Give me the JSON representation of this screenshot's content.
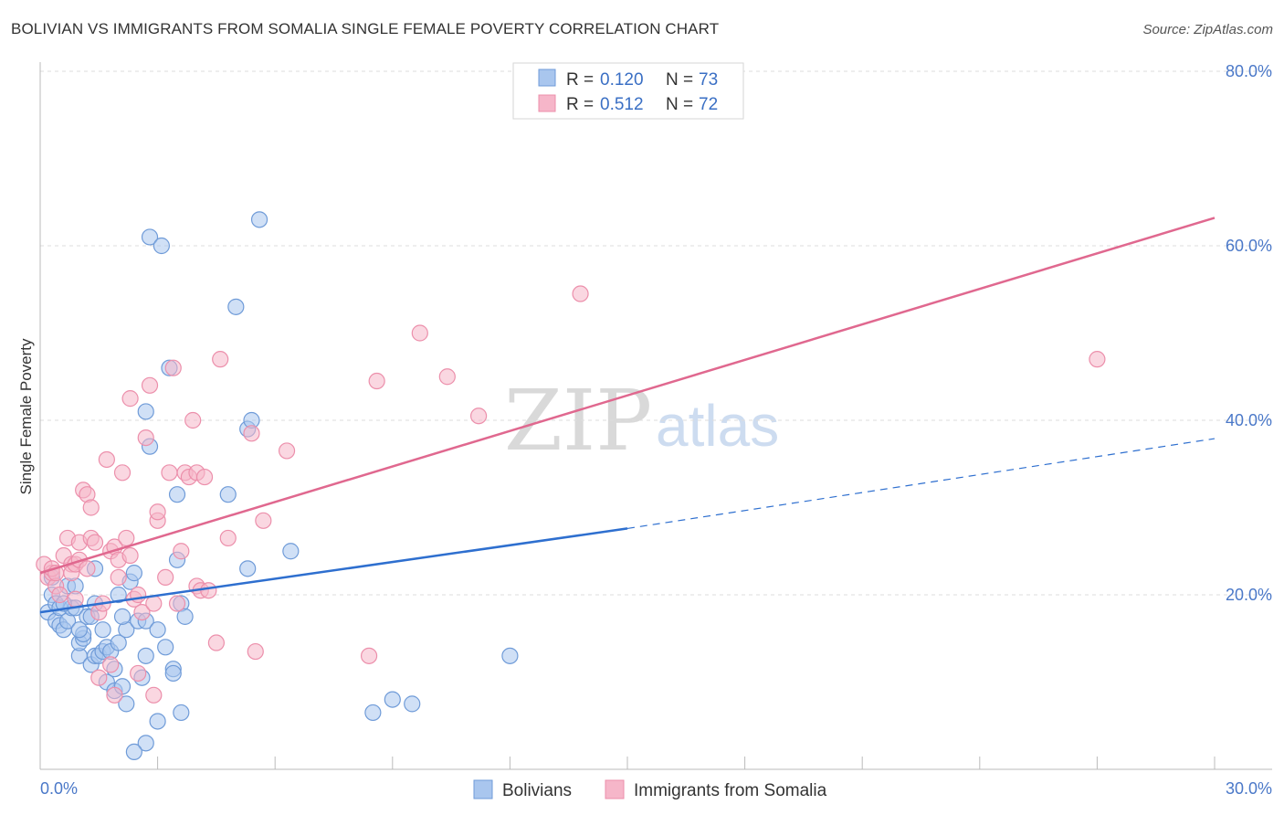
{
  "header": {
    "title": "BOLIVIAN VS IMMIGRANTS FROM SOMALIA SINGLE FEMALE POVERTY CORRELATION CHART",
    "source": "Source: ZipAtlas.com"
  },
  "watermark": {
    "zip": "ZIP",
    "atlas": "atlas"
  },
  "legend_box": {
    "rows": [
      {
        "r_label": "R =",
        "r_value": "0.120",
        "n_label": "N =",
        "n_value": "73"
      },
      {
        "r_label": "R =",
        "r_value": "0.512",
        "n_label": "N =",
        "n_value": "72"
      }
    ]
  },
  "colors": {
    "blue_fill": "#a9c6ee",
    "blue_stroke": "#6f9bd8",
    "blue_line": "#2e6fcf",
    "pink_fill": "#f6b6c9",
    "pink_stroke": "#ec8fab",
    "pink_line": "#e0688f",
    "grid": "#dddddd",
    "tick_text": "#4a78c8"
  },
  "chart_data": {
    "type": "scatter",
    "title": "BOLIVIAN VS IMMIGRANTS FROM SOMALIA SINGLE FEMALE POVERTY CORRELATION CHART",
    "xlabel": "",
    "ylabel": "Single Female Poverty",
    "xlim": [
      0,
      30
    ],
    "ylim": [
      0,
      80
    ],
    "x_tick_labels": [
      "0.0%",
      "30.0%"
    ],
    "y_ticks": [
      20,
      40,
      60,
      80
    ],
    "y_tick_labels": [
      "20.0%",
      "40.0%",
      "60.0%",
      "80.0%"
    ],
    "grid": true,
    "legend_position": "top-center",
    "series": [
      {
        "name": "Bolivians",
        "R": 0.12,
        "N": 73,
        "trend": {
          "x0": 0,
          "y0": 18.0,
          "x1": 15,
          "y1": 27.6,
          "dashed_to_x": 30,
          "dashed_to_y": 37.9
        },
        "points": [
          [
            0.2,
            18
          ],
          [
            0.3,
            20
          ],
          [
            0.3,
            22
          ],
          [
            0.4,
            17
          ],
          [
            0.4,
            19
          ],
          [
            0.5,
            16.5
          ],
          [
            0.5,
            18.5
          ],
          [
            0.6,
            16
          ],
          [
            0.7,
            17
          ],
          [
            0.7,
            21
          ],
          [
            0.8,
            18.5
          ],
          [
            0.9,
            18.5
          ],
          [
            1.0,
            13
          ],
          [
            1.0,
            14.5
          ],
          [
            1.1,
            15
          ],
          [
            1.1,
            15.5
          ],
          [
            1.2,
            17.5
          ],
          [
            1.3,
            17.5
          ],
          [
            1.3,
            12
          ],
          [
            1.4,
            23
          ],
          [
            1.4,
            13
          ],
          [
            1.5,
            13
          ],
          [
            1.6,
            16
          ],
          [
            1.6,
            13.5
          ],
          [
            1.7,
            10
          ],
          [
            1.7,
            14
          ],
          [
            1.8,
            13.5
          ],
          [
            1.9,
            11.5
          ],
          [
            1.9,
            9
          ],
          [
            2.0,
            20
          ],
          [
            2.0,
            14.5
          ],
          [
            2.1,
            9.5
          ],
          [
            2.2,
            7.5
          ],
          [
            2.2,
            16
          ],
          [
            2.3,
            21.5
          ],
          [
            2.4,
            22.5
          ],
          [
            2.5,
            17
          ],
          [
            2.6,
            10.5
          ],
          [
            2.7,
            13
          ],
          [
            2.7,
            3
          ],
          [
            2.7,
            17
          ],
          [
            2.4,
            2
          ],
          [
            2.8,
            61
          ],
          [
            3.0,
            5.5
          ],
          [
            3.0,
            16
          ],
          [
            3.1,
            60
          ],
          [
            3.2,
            14
          ],
          [
            3.3,
            46
          ],
          [
            3.4,
            11.5
          ],
          [
            3.4,
            11
          ],
          [
            3.5,
            24
          ],
          [
            3.6,
            19
          ],
          [
            3.6,
            6.5
          ],
          [
            3.7,
            17.5
          ],
          [
            2.8,
            37
          ],
          [
            3.5,
            31.5
          ],
          [
            2.7,
            41
          ],
          [
            4.8,
            31.5
          ],
          [
            5.0,
            53
          ],
          [
            5.3,
            39
          ],
          [
            5.4,
            40
          ],
          [
            5.6,
            63
          ],
          [
            5.3,
            23
          ],
          [
            6.4,
            25
          ],
          [
            8.5,
            6.5
          ],
          [
            9.0,
            8
          ],
          [
            9.5,
            7.5
          ],
          [
            12.0,
            13
          ],
          [
            1.4,
            19
          ],
          [
            0.9,
            21
          ],
          [
            2.1,
            17.5
          ],
          [
            1.0,
            16
          ],
          [
            0.6,
            19
          ]
        ]
      },
      {
        "name": "Immigrants from Somalia",
        "R": 0.512,
        "N": 72,
        "trend": {
          "x0": 0,
          "y0": 22.5,
          "x1": 30,
          "y1": 63.2
        },
        "points": [
          [
            0.1,
            23.5
          ],
          [
            0.2,
            22
          ],
          [
            0.3,
            22.5
          ],
          [
            0.3,
            23
          ],
          [
            0.4,
            21
          ],
          [
            0.5,
            20
          ],
          [
            0.6,
            24.5
          ],
          [
            0.7,
            26.5
          ],
          [
            0.8,
            23.5
          ],
          [
            0.8,
            22.5
          ],
          [
            0.9,
            23.5
          ],
          [
            0.9,
            19.5
          ],
          [
            1.0,
            24
          ],
          [
            1.0,
            26
          ],
          [
            1.1,
            32
          ],
          [
            1.2,
            31.5
          ],
          [
            1.3,
            30
          ],
          [
            1.3,
            26.5
          ],
          [
            1.4,
            26
          ],
          [
            1.5,
            18
          ],
          [
            1.5,
            10.5
          ],
          [
            1.6,
            19
          ],
          [
            1.7,
            35.5
          ],
          [
            1.8,
            25
          ],
          [
            1.8,
            12
          ],
          [
            1.9,
            8.5
          ],
          [
            1.9,
            25.5
          ],
          [
            2.0,
            24
          ],
          [
            2.0,
            22
          ],
          [
            2.1,
            34
          ],
          [
            2.2,
            26.5
          ],
          [
            2.3,
            24.5
          ],
          [
            2.3,
            42.5
          ],
          [
            2.4,
            19.5
          ],
          [
            2.5,
            11
          ],
          [
            2.5,
            20
          ],
          [
            2.6,
            18
          ],
          [
            2.7,
            38
          ],
          [
            2.8,
            44
          ],
          [
            2.9,
            8.5
          ],
          [
            2.9,
            19
          ],
          [
            3.0,
            28.5
          ],
          [
            3.0,
            29.5
          ],
          [
            3.2,
            22
          ],
          [
            3.3,
            34
          ],
          [
            3.4,
            46
          ],
          [
            3.5,
            19
          ],
          [
            3.6,
            25
          ],
          [
            3.7,
            34
          ],
          [
            3.8,
            33.5
          ],
          [
            3.9,
            40
          ],
          [
            4.0,
            34
          ],
          [
            4.0,
            21
          ],
          [
            4.1,
            20.5
          ],
          [
            4.2,
            33.5
          ],
          [
            4.3,
            20.5
          ],
          [
            4.5,
            14.5
          ],
          [
            4.6,
            47
          ],
          [
            4.8,
            26.5
          ],
          [
            5.4,
            38.5
          ],
          [
            5.5,
            13.5
          ],
          [
            5.7,
            28.5
          ],
          [
            6.3,
            36.5
          ],
          [
            8.4,
            13
          ],
          [
            8.6,
            44.5
          ],
          [
            9.7,
            50
          ],
          [
            10.4,
            45
          ],
          [
            11.2,
            40.5
          ],
          [
            13.8,
            54.5
          ],
          [
            27.0,
            47
          ],
          [
            0.4,
            22.5
          ],
          [
            1.2,
            23
          ]
        ]
      }
    ]
  }
}
